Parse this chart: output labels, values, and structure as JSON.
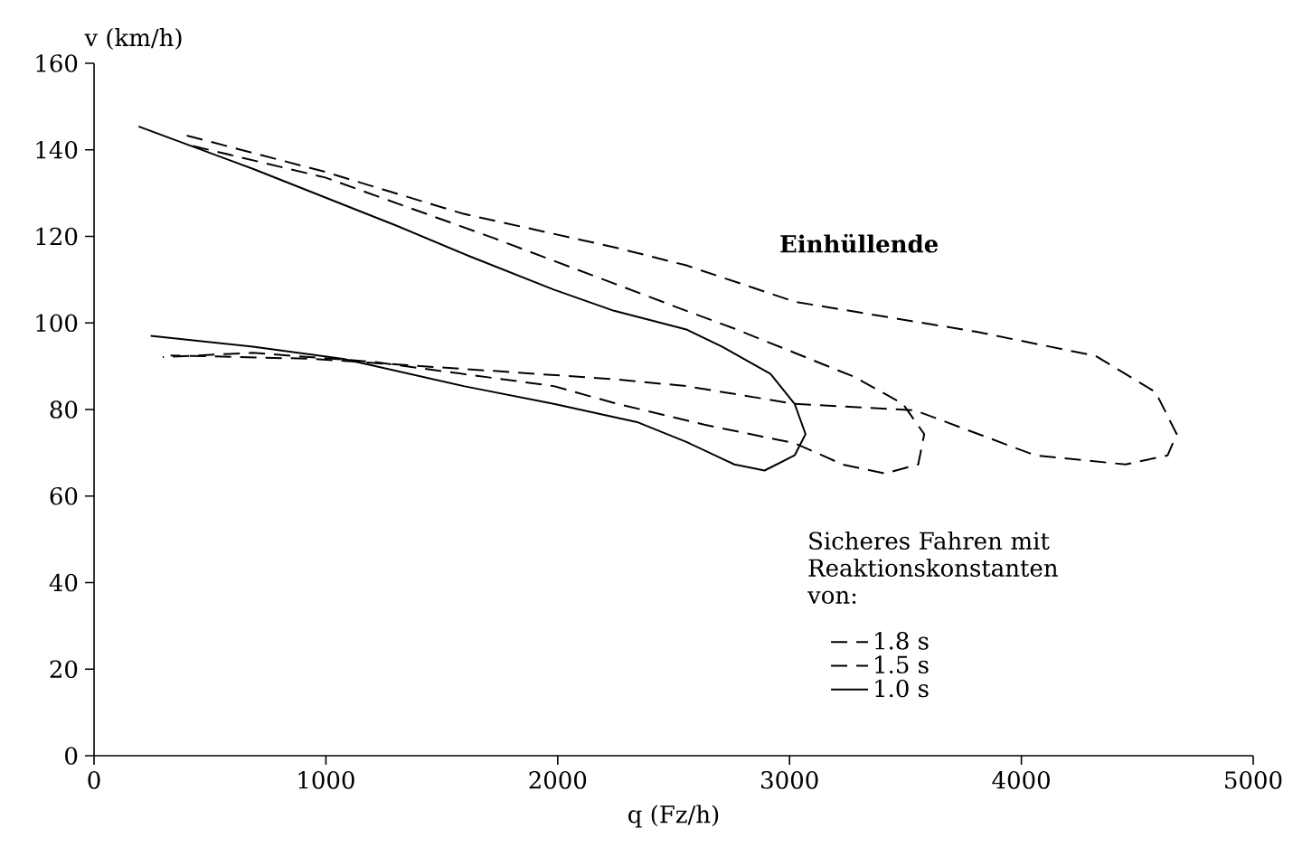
{
  "chart_data": {
    "type": "line",
    "xlabel": "q (Fz/h)",
    "ylabel": "v (km/h)",
    "legend_title": "Sicheres Fahren mit Reaktionskonstanten von:",
    "legend": "bottom right",
    "xlim": [
      0,
      5000
    ],
    "ylim": [
      0,
      160
    ],
    "xticks": [
      0,
      1000,
      2000,
      3000,
      4000,
      5000
    ],
    "yticks": [
      0,
      20,
      40,
      60,
      80,
      100,
      120,
      140,
      160
    ],
    "grid": false,
    "marker": "none",
    "annotations": [
      "Einhüllende"
    ],
    "series": [
      {
        "name": "1.8 s",
        "color": "#000000",
        "line_style": "dashed",
        "x": [
          400,
          997,
          1594,
          2243,
          2555,
          3022,
          3801,
          4320,
          4579,
          4670,
          4631,
          4449,
          4060,
          3541,
          3022,
          2555,
          2243,
          1724,
          945,
          330
        ],
        "values": [
          143.3,
          134.9,
          125.2,
          117.5,
          113.3,
          104.9,
          98.0,
          92.4,
          84.0,
          74.3,
          69.4,
          67.3,
          69.4,
          79.8,
          81.3,
          85.4,
          87.0,
          88.9,
          91.7,
          92.5
        ]
      },
      {
        "name": "1.5 s",
        "color": "#000000",
        "line_style": "dashed",
        "x": [
          426,
          997,
          1724,
          2243,
          2555,
          2762,
          3281,
          3489,
          3581,
          3555,
          3411,
          3229,
          3022,
          2632,
          2243,
          1983,
          1205,
          685,
          296
        ],
        "values": [
          140.9,
          133.6,
          119.6,
          109.1,
          102.8,
          98.7,
          87.5,
          81.3,
          74.3,
          67.3,
          65.2,
          67.3,
          72.2,
          76.5,
          81.5,
          85.4,
          91.0,
          93.1,
          92.1
        ]
      },
      {
        "name": "1.0 s",
        "color": "#000000",
        "line_style": "solid",
        "x": [
          192,
          685,
          1308,
          1620,
          1983,
          2243,
          2555,
          2710,
          2918,
          3022,
          3069,
          3022,
          2892,
          2762,
          2555,
          2347,
          1983,
          1594,
          1075,
          685,
          244
        ],
        "values": [
          145.4,
          135.6,
          122.4,
          115.4,
          107.7,
          102.8,
          98.5,
          94.5,
          88.2,
          81.3,
          74.3,
          69.4,
          65.9,
          67.3,
          72.5,
          77.0,
          81.3,
          85.4,
          91.7,
          94.5,
          97.0
        ]
      }
    ]
  }
}
